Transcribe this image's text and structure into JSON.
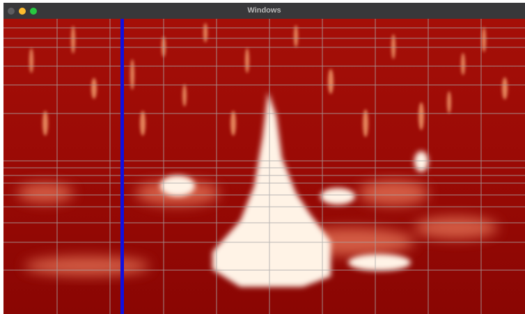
{
  "window": {
    "title": "Windows"
  }
}
